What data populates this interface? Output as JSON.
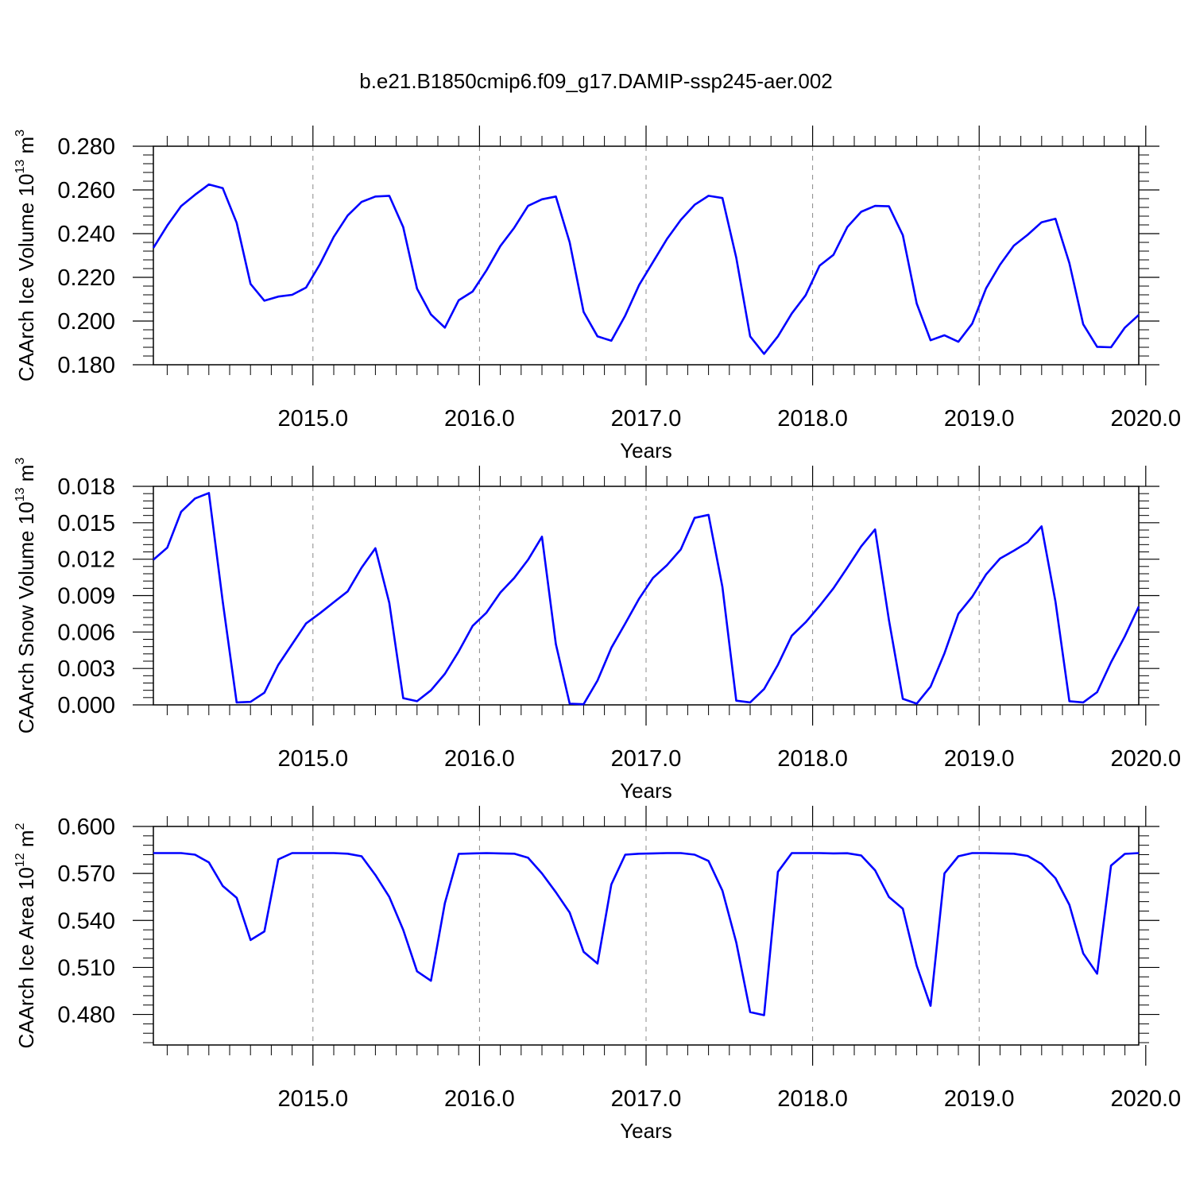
{
  "title": "b.e21.B1850cmip6.f09_g17.DAMIP-ssp245-aer.002",
  "colors": {
    "line": "#0000ff",
    "axis": "#000000",
    "grid": "#888888"
  },
  "chart_data": [
    {
      "type": "line",
      "ylabel": "CAArch Ice Volume 10",
      "ylabel_exp": "13",
      "ylabel_unit": " m",
      "ylabel_unit_exp": "3",
      "xlabel": "Years",
      "xlim": [
        2014.042,
        2019.958
      ],
      "ylim": [
        0.18,
        0.28
      ],
      "yticks": [
        0.18,
        0.2,
        0.22,
        0.24,
        0.26,
        0.28
      ],
      "ytick_labels": [
        "0.180",
        "0.200",
        "0.220",
        "0.240",
        "0.260",
        "0.280"
      ],
      "xticks": [
        2015,
        2016,
        2017,
        2018,
        2019,
        2020
      ],
      "xtick_labels": [
        "2015.0",
        "2016.0",
        "2017.0",
        "2018.0",
        "2019.0",
        "2020.0"
      ],
      "grid": "x dashed",
      "series": [
        {
          "values": [
            0.2335,
            0.2437,
            0.2526,
            0.2578,
            0.2625,
            0.2608,
            0.245,
            0.217,
            0.2093,
            0.2112,
            0.212,
            0.2153,
            0.226,
            0.2385,
            0.2483,
            0.2545,
            0.257,
            0.2573,
            0.243,
            0.2148,
            0.203,
            0.197,
            0.2095,
            0.2135,
            0.2232,
            0.2343,
            0.2427,
            0.2527,
            0.2557,
            0.257,
            0.236,
            0.2042,
            0.193,
            0.191,
            0.2025,
            0.2165,
            0.227,
            0.2375,
            0.2463,
            0.2532,
            0.2573,
            0.2563,
            0.229,
            0.193,
            0.185,
            0.193,
            0.2035,
            0.2118,
            0.2253,
            0.2303,
            0.243,
            0.25,
            0.2527,
            0.2525,
            0.2393,
            0.208,
            0.1912,
            0.1935,
            0.1905,
            0.1988,
            0.215,
            0.2258,
            0.2345,
            0.2395,
            0.2452,
            0.2468,
            0.2265,
            0.1985,
            0.1882,
            0.188,
            0.197,
            0.2028
          ]
        }
      ]
    },
    {
      "type": "line",
      "ylabel": "CAArch Snow Volume 10",
      "ylabel_exp": "13",
      "ylabel_unit": " m",
      "ylabel_unit_exp": "3",
      "xlabel": "Years",
      "xlim": [
        2014.042,
        2019.958
      ],
      "ylim": [
        0.0,
        0.018
      ],
      "yticks": [
        0.0,
        0.003,
        0.006,
        0.009,
        0.012,
        0.015,
        0.018
      ],
      "ytick_labels": [
        "0.000",
        "0.003",
        "0.006",
        "0.009",
        "0.012",
        "0.015",
        "0.018"
      ],
      "xticks": [
        2015,
        2016,
        2017,
        2018,
        2019,
        2020
      ],
      "xtick_labels": [
        "2015.0",
        "2016.0",
        "2017.0",
        "2018.0",
        "2019.0",
        "2020.0"
      ],
      "grid": "x dashed",
      "series": [
        {
          "values": [
            0.01195,
            0.01295,
            0.0159,
            0.017,
            0.01745,
            0.0085,
            0.0002,
            0.00025,
            0.001,
            0.0033,
            0.005,
            0.0067,
            0.00755,
            0.00845,
            0.00935,
            0.0113,
            0.0129,
            0.0084,
            0.00055,
            0.0003,
            0.0012,
            0.00255,
            0.0044,
            0.0065,
            0.0076,
            0.00925,
            0.01045,
            0.01195,
            0.01385,
            0.005,
            0.0001,
            5e-05,
            0.002,
            0.0047,
            0.0067,
            0.00875,
            0.01045,
            0.0115,
            0.0128,
            0.0154,
            0.01565,
            0.0097,
            0.00035,
            0.0002,
            0.0013,
            0.0033,
            0.0057,
            0.0068,
            0.00815,
            0.0096,
            0.0113,
            0.01305,
            0.01445,
            0.007,
            0.0005,
            0.0001,
            0.0015,
            0.00425,
            0.0075,
            0.0089,
            0.01075,
            0.01205,
            0.0127,
            0.0134,
            0.0147,
            0.0085,
            0.0003,
            0.0002,
            0.00105,
            0.0035,
            0.00565,
            0.0081
          ]
        }
      ]
    },
    {
      "type": "line",
      "ylabel": "CAArch Ice Area 10",
      "ylabel_exp": "12",
      "ylabel_unit": " m",
      "ylabel_unit_exp": "2",
      "xlabel": "Years",
      "xlim": [
        2014.042,
        2019.958
      ],
      "ylim": [
        0.4605,
        0.6
      ],
      "yticks": [
        0.48,
        0.51,
        0.54,
        0.57,
        0.6
      ],
      "ytick_labels": [
        "0.480",
        "0.510",
        "0.540",
        "0.570",
        "0.600"
      ],
      "xticks": [
        2015,
        2016,
        2017,
        2018,
        2019,
        2020
      ],
      "xtick_labels": [
        "2015.0",
        "2016.0",
        "2017.0",
        "2018.0",
        "2019.0",
        "2020.0"
      ],
      "grid": "x dashed",
      "series": [
        {
          "values": [
            0.583,
            0.583,
            0.583,
            0.582,
            0.577,
            0.562,
            0.5545,
            0.5275,
            0.533,
            0.579,
            0.583,
            0.583,
            0.583,
            0.583,
            0.5826,
            0.581,
            0.569,
            0.555,
            0.534,
            0.5075,
            0.5015,
            0.551,
            0.5825,
            0.5828,
            0.583,
            0.5828,
            0.5826,
            0.58,
            0.57,
            0.558,
            0.545,
            0.52,
            0.5125,
            0.563,
            0.582,
            0.5826,
            0.5828,
            0.583,
            0.583,
            0.582,
            0.578,
            0.559,
            0.526,
            0.4815,
            0.4795,
            0.571,
            0.583,
            0.583,
            0.583,
            0.5828,
            0.5829,
            0.5815,
            0.572,
            0.555,
            0.5475,
            0.511,
            0.4855,
            0.57,
            0.581,
            0.583,
            0.583,
            0.5828,
            0.5826,
            0.5812,
            0.576,
            0.567,
            0.55,
            0.519,
            0.506,
            0.575,
            0.5825,
            0.583
          ]
        }
      ]
    }
  ]
}
